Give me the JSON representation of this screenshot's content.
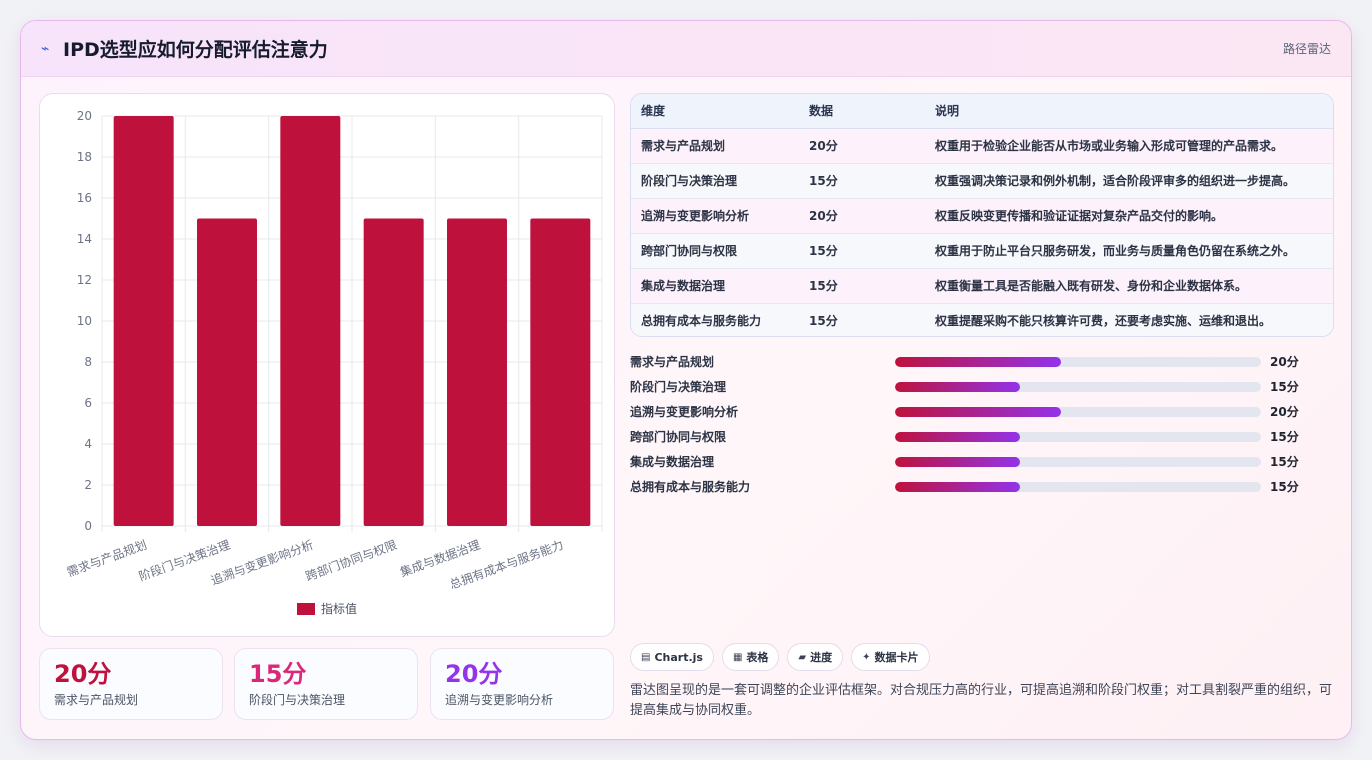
{
  "header": {
    "icon": "radar-icon",
    "title": "IPD选型应如何分配评估注意力",
    "link": "路径雷达"
  },
  "chart_data": {
    "type": "bar",
    "categories": [
      "需求与产品规划",
      "阶段门与决策治理",
      "追溯与变更影响分析",
      "跨部门协同与权限",
      "集成与数据治理",
      "总拥有成本与服务能力"
    ],
    "series": [
      {
        "name": "指标值",
        "values": [
          20,
          15,
          20,
          15,
          15,
          15
        ]
      }
    ],
    "yticks": [
      "0",
      "2",
      "4",
      "6",
      "8",
      "10",
      "12",
      "14",
      "16",
      "18",
      "20"
    ],
    "ylim": [
      0,
      20
    ],
    "grid": true,
    "legend": "bottom",
    "color": "#be123c"
  },
  "kpis": [
    {
      "value": "20分",
      "label": "需求与产品规划",
      "color": "#be123c"
    },
    {
      "value": "15分",
      "label": "阶段门与决策治理",
      "color": "#db2777"
    },
    {
      "value": "20分",
      "label": "追溯与变更影响分析",
      "color": "#9333ea"
    }
  ],
  "table": {
    "headers": [
      "维度",
      "数据",
      "说明"
    ],
    "rows": [
      [
        "需求与产品规划",
        "20分",
        "权重用于检验企业能否从市场或业务输入形成可管理的产品需求。"
      ],
      [
        "阶段门与决策治理",
        "15分",
        "权重强调决策记录和例外机制，适合阶段评审多的组织进一步提高。"
      ],
      [
        "追溯与变更影响分析",
        "20分",
        "权重反映变更传播和验证证据对复杂产品交付的影响。"
      ],
      [
        "跨部门协同与权限",
        "15分",
        "权重用于防止平台只服务研发，而业务与质量角色仍留在系统之外。"
      ],
      [
        "集成与数据治理",
        "15分",
        "权重衡量工具是否能融入既有研发、身份和企业数据体系。"
      ],
      [
        "总拥有成本与服务能力",
        "15分",
        "权重提醒采购不能只核算许可费，还要考虑实施、运维和退出。"
      ]
    ]
  },
  "progress": [
    {
      "label": "需求与产品规划",
      "value_text": "20分",
      "fraction": 0.4545
    },
    {
      "label": "阶段门与决策治理",
      "value_text": "15分",
      "fraction": 0.3409
    },
    {
      "label": "追溯与变更影响分析",
      "value_text": "20分",
      "fraction": 0.4545
    },
    {
      "label": "跨部门协同与权限",
      "value_text": "15分",
      "fraction": 0.3409
    },
    {
      "label": "集成与数据治理",
      "value_text": "15分",
      "fraction": 0.3409
    },
    {
      "label": "总拥有成本与服务能力",
      "value_text": "15分",
      "fraction": 0.3409
    }
  ],
  "tags": [
    {
      "icon": "chart-icon",
      "glyph": "▤",
      "label": "Chart.js"
    },
    {
      "icon": "table-icon",
      "glyph": "▦",
      "label": "表格"
    },
    {
      "icon": "progress-icon",
      "glyph": "▰",
      "label": "进度"
    },
    {
      "icon": "sparkle-icon",
      "glyph": "✦",
      "label": "数据卡片"
    }
  ],
  "note": "雷达图呈现的是一套可调整的企业评估框架。对合规压力高的行业，可提高追溯和阶段门权重；对工具割裂严重的组织，可提高集成与协同权重。"
}
